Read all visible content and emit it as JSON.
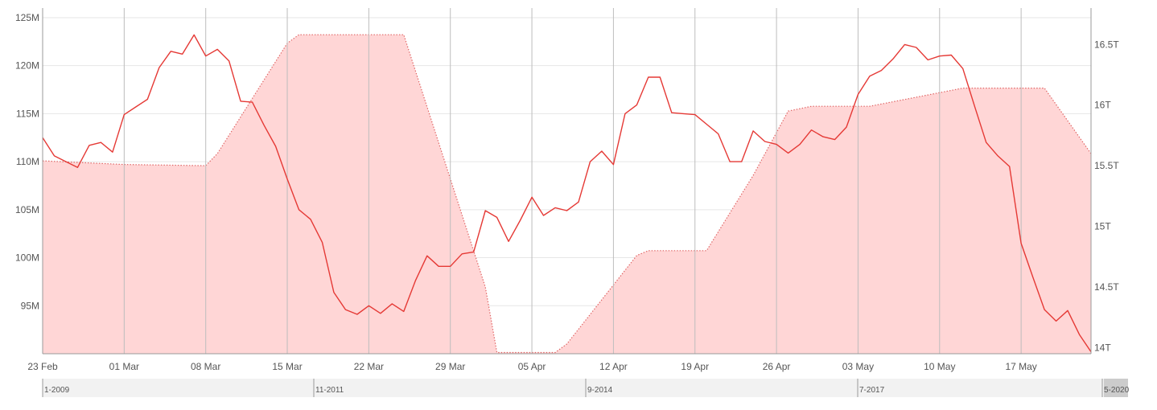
{
  "chart_data": {
    "type": "line",
    "grid": true,
    "x_tick_labels": [
      "23 Feb",
      "01 Mar",
      "08 Mar",
      "15 Mar",
      "22 Mar",
      "29 Mar",
      "05 Apr",
      "12 Apr",
      "19 Apr",
      "26 Apr",
      "03 May",
      "10 May",
      "17 May"
    ],
    "y_left": {
      "range": [
        90000000,
        126000000
      ],
      "ticks": [
        95000000,
        100000000,
        105000000,
        110000000,
        115000000,
        120000000,
        125000000
      ],
      "tick_labels": [
        "95M",
        "100M",
        "105M",
        "110M",
        "115M",
        "120M",
        "125M"
      ]
    },
    "y_right": {
      "range": [
        13950000000000,
        16800000000000
      ],
      "ticks": [
        14000000000000,
        14500000000000,
        15000000000000,
        15500000000000,
        16000000000000,
        16500000000000
      ],
      "tick_labels": [
        "14T",
        "14.5T",
        "15T",
        "15.5T",
        "16T",
        "16.5T"
      ]
    },
    "series": [
      {
        "axis": "left",
        "style": "line",
        "color": "#e53935",
        "points": [
          [
            0,
            112.5
          ],
          [
            1,
            110.6
          ],
          [
            2,
            110.0
          ],
          [
            3,
            109.4
          ],
          [
            4,
            111.7
          ],
          [
            5,
            112.0
          ],
          [
            6,
            111.0
          ],
          [
            7,
            114.9
          ],
          [
            8,
            115.7
          ],
          [
            9,
            116.5
          ],
          [
            10,
            119.8
          ],
          [
            11,
            121.5
          ],
          [
            12,
            121.2
          ],
          [
            13,
            123.2
          ],
          [
            14,
            121.0
          ],
          [
            15,
            121.7
          ],
          [
            16,
            120.5
          ],
          [
            17,
            116.3
          ],
          [
            18,
            116.2
          ],
          [
            19,
            113.8
          ],
          [
            20,
            111.6
          ],
          [
            21,
            108.2
          ],
          [
            22,
            105.0
          ],
          [
            23,
            104.0
          ],
          [
            24,
            101.6
          ],
          [
            25,
            96.4
          ],
          [
            26,
            94.6
          ],
          [
            27,
            94.1
          ],
          [
            28,
            95.0
          ],
          [
            29,
            94.2
          ],
          [
            30,
            95.2
          ],
          [
            31,
            94.4
          ],
          [
            32,
            97.6
          ],
          [
            33,
            100.2
          ],
          [
            34,
            99.1
          ],
          [
            35,
            99.1
          ],
          [
            36,
            100.4
          ],
          [
            37,
            100.6
          ],
          [
            38,
            104.9
          ],
          [
            39,
            104.2
          ],
          [
            40,
            101.7
          ],
          [
            41,
            103.9
          ],
          [
            42,
            106.3
          ],
          [
            43,
            104.4
          ],
          [
            44,
            105.2
          ],
          [
            45,
            104.9
          ],
          [
            46,
            105.8
          ],
          [
            47,
            110.0
          ],
          [
            48,
            111.1
          ],
          [
            49,
            109.7
          ],
          [
            50,
            115.0
          ],
          [
            51,
            115.9
          ],
          [
            52,
            118.8
          ],
          [
            53,
            118.8
          ],
          [
            54,
            115.1
          ],
          [
            55,
            115.0
          ],
          [
            56,
            114.9
          ],
          [
            57,
            113.9
          ],
          [
            58,
            112.9
          ],
          [
            59,
            110.0
          ],
          [
            60,
            110.0
          ],
          [
            61,
            113.2
          ],
          [
            62,
            112.1
          ],
          [
            63,
            111.8
          ],
          [
            64,
            110.9
          ],
          [
            65,
            111.8
          ],
          [
            66,
            113.3
          ],
          [
            67,
            112.6
          ],
          [
            68,
            112.3
          ],
          [
            69,
            113.6
          ],
          [
            70,
            117.0
          ],
          [
            71,
            118.9
          ],
          [
            72,
            119.5
          ],
          [
            73,
            120.7
          ],
          [
            74,
            122.2
          ],
          [
            75,
            121.9
          ],
          [
            76,
            120.6
          ],
          [
            77,
            121.0
          ],
          [
            78,
            121.1
          ],
          [
            79,
            119.7
          ],
          [
            80,
            115.8
          ],
          [
            81,
            112.0
          ],
          [
            82,
            110.6
          ],
          [
            83,
            109.5
          ],
          [
            84,
            101.5
          ],
          [
            85,
            98.0
          ],
          [
            86,
            94.6
          ],
          [
            87,
            93.4
          ],
          [
            88,
            94.5
          ],
          [
            89,
            92.0
          ],
          [
            90,
            90.2
          ]
        ]
      },
      {
        "axis": "right",
        "style": "area-dotted",
        "color": "#ffd6d6",
        "line_color": "#e06666",
        "points": [
          [
            0,
            15540000000000
          ],
          [
            7,
            15510000000000
          ],
          [
            14,
            15500000000000
          ],
          [
            15,
            15600000000000
          ],
          [
            21,
            16510000000000
          ],
          [
            22,
            16580000000000
          ],
          [
            31,
            16580000000000
          ],
          [
            38,
            14500000000000
          ],
          [
            39,
            13960000000000
          ],
          [
            44,
            13960000000000
          ],
          [
            45,
            14030000000000
          ],
          [
            51,
            14760000000000
          ],
          [
            52,
            14800000000000
          ],
          [
            57,
            14800000000000
          ],
          [
            61,
            15420000000000
          ],
          [
            64,
            15950000000000
          ],
          [
            66,
            15990000000000
          ],
          [
            71,
            15990000000000
          ],
          [
            79,
            16140000000000
          ],
          [
            86,
            16140000000000
          ],
          [
            90,
            15600000000000
          ]
        ]
      }
    ]
  },
  "navigator": {
    "labels": [
      "1-2009",
      "11-2011",
      "9-2014",
      "7-2017",
      "5-2020"
    ]
  }
}
